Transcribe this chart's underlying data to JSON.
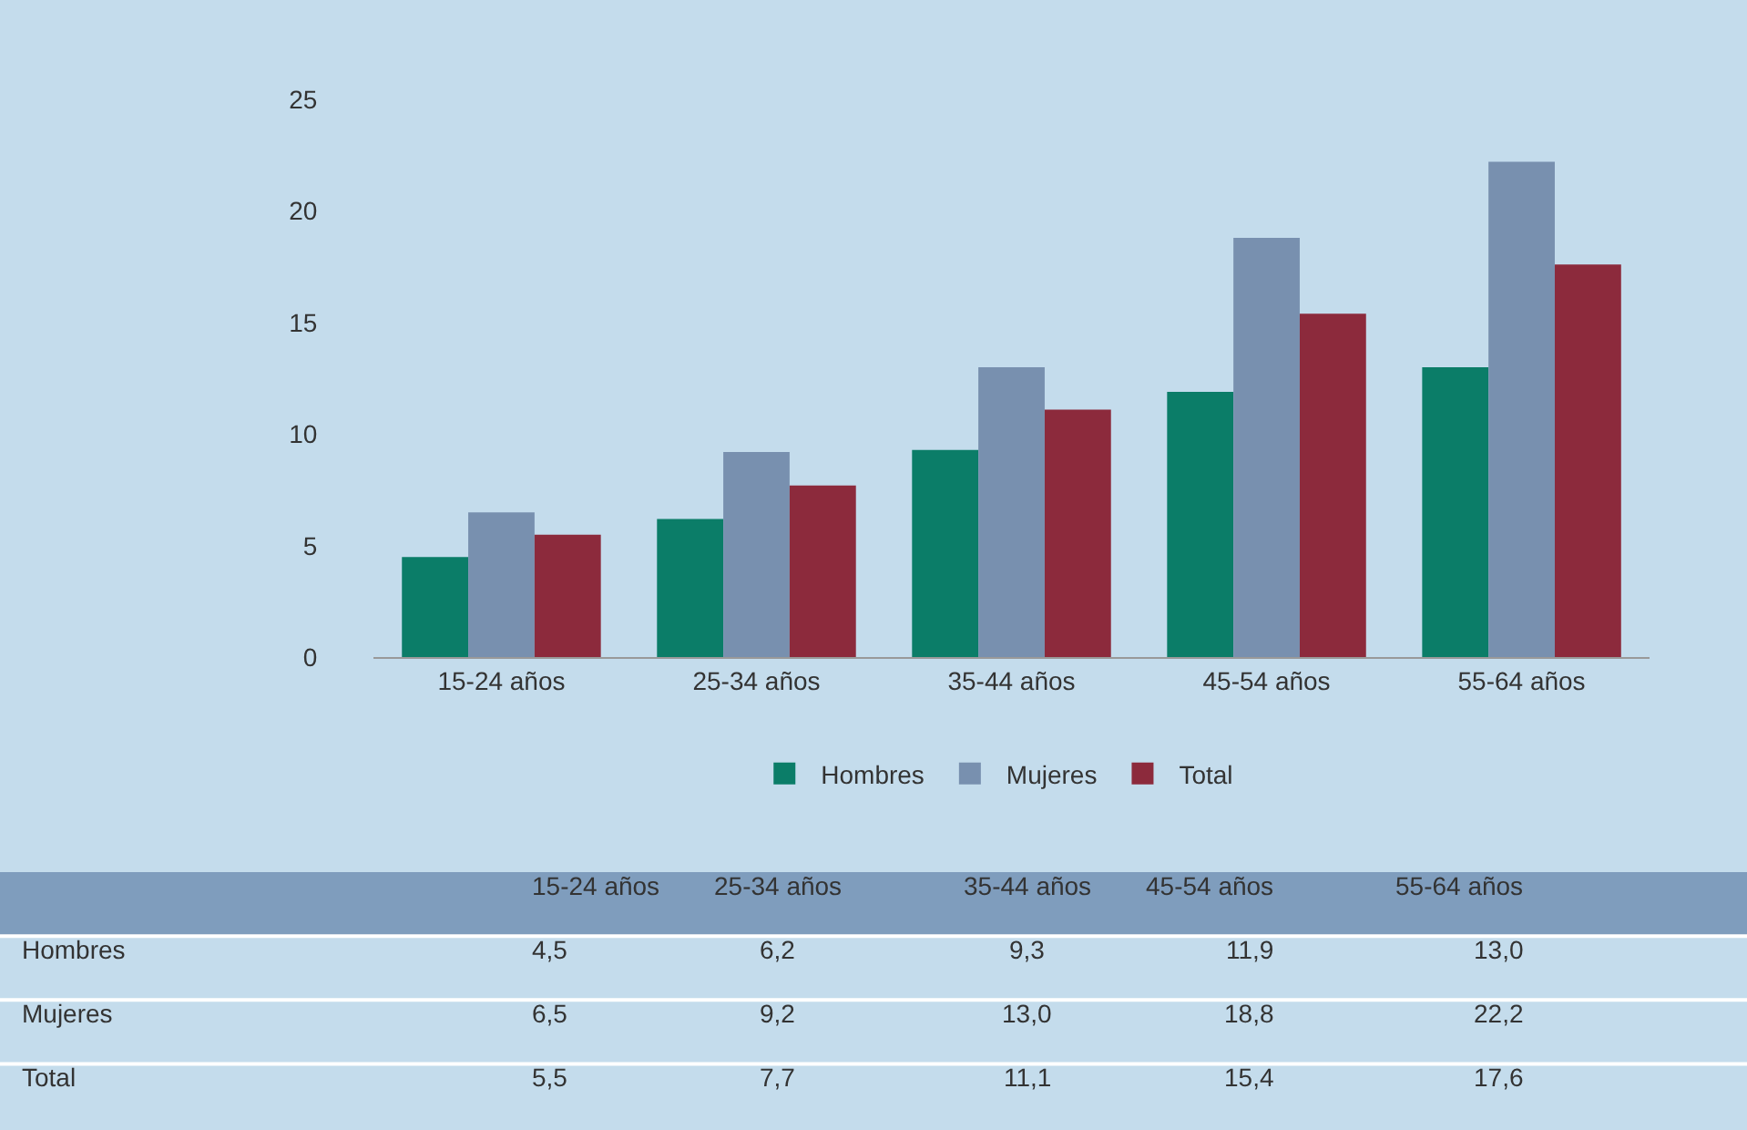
{
  "chart_data": {
    "type": "bar",
    "categories": [
      "15-24 años",
      "25-34 años",
      "35-44 años",
      "45-54 años",
      "55-64 años"
    ],
    "series": [
      {
        "name": "Hombres",
        "color": "#0b7d68",
        "values": [
          4.5,
          6.2,
          9.3,
          11.9,
          13.0
        ],
        "value_labels": [
          "4,5",
          "6,2",
          "9,3",
          "11,9",
          "13,0"
        ]
      },
      {
        "name": "Mujeres",
        "color": "#7890af",
        "values": [
          6.5,
          9.2,
          13.0,
          18.8,
          22.2
        ],
        "value_labels": [
          "6,5",
          "9,2",
          "13,0",
          "18,8",
          "22,2"
        ]
      },
      {
        "name": "Total",
        "color": "#8c2a3c",
        "values": [
          5.5,
          7.7,
          11.1,
          15.4,
          17.6
        ],
        "value_labels": [
          "5,5",
          "7,7",
          "11,1",
          "15,4",
          "17,6"
        ]
      }
    ],
    "ylim": [
      0,
      25
    ],
    "yticks": [
      0,
      5,
      10,
      15,
      20,
      25
    ],
    "grid": false,
    "legend": "bottom"
  }
}
